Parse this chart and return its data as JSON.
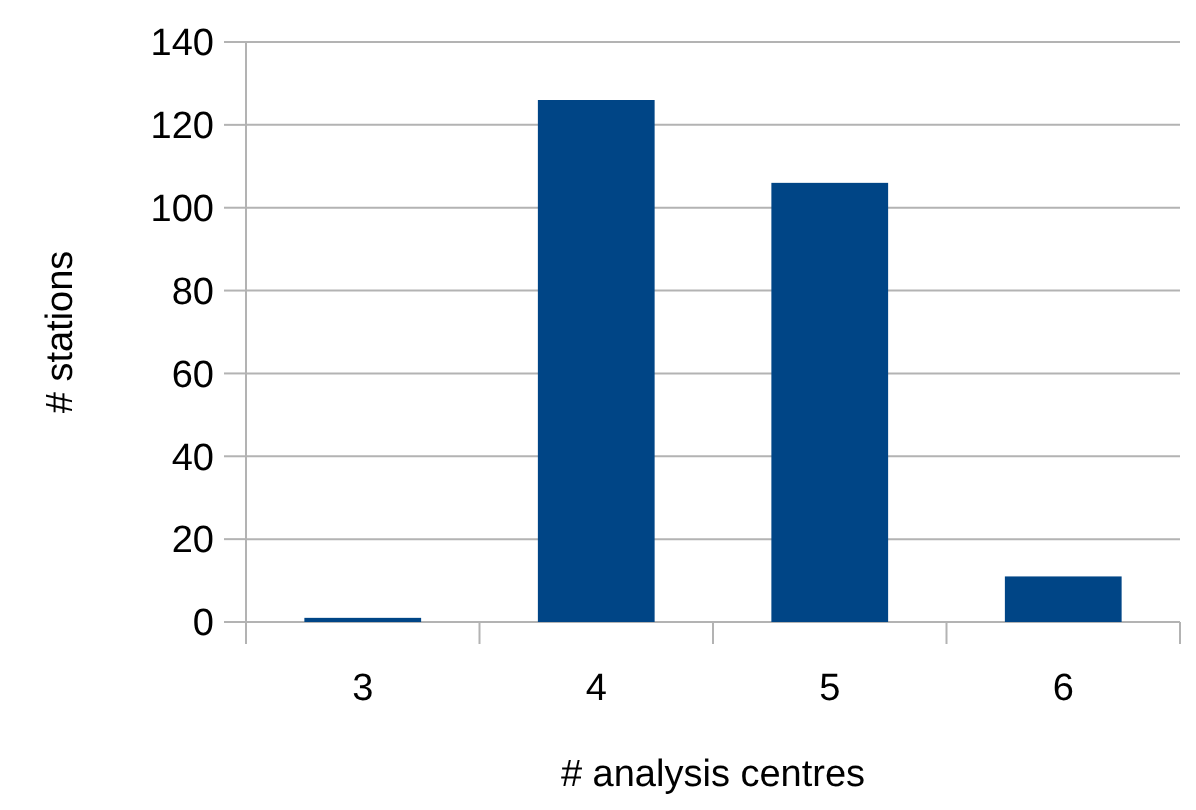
{
  "chart_data": {
    "type": "bar",
    "xlabel": "# analysis centres",
    "ylabel": "# stations",
    "categories": [
      "3",
      "4",
      "5",
      "6"
    ],
    "values": [
      1,
      126,
      106,
      11
    ],
    "color": "#004586",
    "ylim": [
      0,
      140
    ],
    "yticks": [
      0,
      20,
      40,
      60,
      80,
      100,
      120,
      140
    ],
    "grid": "y"
  }
}
